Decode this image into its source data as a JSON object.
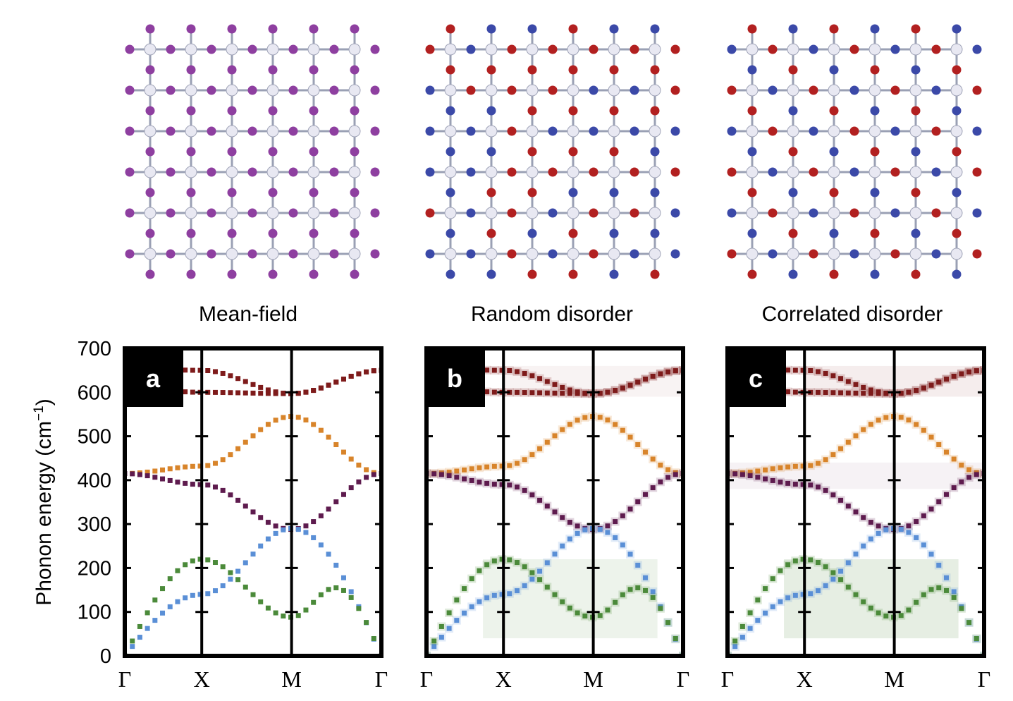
{
  "figure": {
    "panels": [
      {
        "title": "Mean-field",
        "label": "a",
        "lattice": "mean-field",
        "spread": false
      },
      {
        "title": "Random disorder",
        "label": "b",
        "lattice": "random",
        "spread": true
      },
      {
        "title": "Correlated disorder",
        "label": "c",
        "lattice": "correlated",
        "spread": true
      }
    ],
    "y_axis_label_pre": "Phonon energy (cm",
    "y_axis_label_sup": "−1",
    "y_axis_label_post": ")",
    "colors": {
      "top_optical": "#7e1b1b",
      "mid_optical": "#d8842a",
      "low_optical": "#5e1b4e",
      "acoustic_blue": "#5a8fd6",
      "acoustic_green": "#4b8a3a",
      "atom_purple": "#8e3fa0",
      "atom_red": "#b22020",
      "atom_blue": "#3b49a8",
      "atom_center": "#e8e8f2"
    }
  },
  "chart_data": [
    {
      "type": "line",
      "panel": "a",
      "ylabel": "Phonon energy (cm−1)",
      "ylim": [
        0,
        700
      ],
      "yticks": [
        0,
        100,
        200,
        300,
        400,
        500,
        600,
        700
      ],
      "xticks": [
        "Γ",
        "X",
        "M",
        "Γ"
      ],
      "grid": "vertical lines at high-symmetry points",
      "series": [
        {
          "x": [
            0,
            0.3,
            0.65,
            1.0
          ],
          "y": [
            610,
            600,
            597,
            650
          ]
        },
        {
          "x": [
            0,
            0.3,
            0.65,
            1.0
          ],
          "y": [
            655,
            650,
            597,
            650
          ]
        },
        {
          "x": [
            0,
            0.3,
            0.65,
            1.0
          ],
          "y": [
            415,
            432,
            545,
            415
          ]
        },
        {
          "x": [
            0,
            0.3,
            0.65,
            1.0
          ],
          "y": [
            415,
            390,
            288,
            415
          ]
        },
        {
          "x": [
            0,
            0.3,
            0.65,
            1.0
          ],
          "y": [
            0,
            140,
            290,
            0
          ]
        },
        {
          "x": [
            0,
            0.3,
            0.65,
            0.82,
            1.0
          ],
          "y": [
            0,
            220,
            88,
            155,
            0
          ]
        }
      ]
    },
    {
      "type": "line",
      "panel": "b",
      "ylim": [
        0,
        700
      ],
      "xticks": [
        "Γ",
        "X",
        "M",
        "Γ"
      ],
      "series": [
        {
          "x": [
            0,
            0.3,
            0.65,
            1.0
          ],
          "y": [
            610,
            600,
            597,
            650
          ]
        },
        {
          "x": [
            0,
            0.3,
            0.65,
            1.0
          ],
          "y": [
            655,
            650,
            597,
            650
          ]
        },
        {
          "x": [
            0,
            0.3,
            0.65,
            1.0
          ],
          "y": [
            415,
            432,
            545,
            415
          ]
        },
        {
          "x": [
            0,
            0.3,
            0.65,
            1.0
          ],
          "y": [
            415,
            390,
            288,
            415
          ]
        },
        {
          "x": [
            0,
            0.3,
            0.65,
            1.0
          ],
          "y": [
            0,
            140,
            290,
            0
          ]
        },
        {
          "x": [
            0,
            0.3,
            0.65,
            0.82,
            1.0
          ],
          "y": [
            0,
            220,
            88,
            155,
            0
          ]
        }
      ]
    },
    {
      "type": "line",
      "panel": "c",
      "ylim": [
        0,
        700
      ],
      "xticks": [
        "Γ",
        "X",
        "M",
        "Γ"
      ],
      "series": [
        {
          "x": [
            0,
            0.3,
            0.65,
            1.0
          ],
          "y": [
            610,
            600,
            597,
            650
          ]
        },
        {
          "x": [
            0,
            0.3,
            0.65,
            1.0
          ],
          "y": [
            655,
            650,
            597,
            650
          ]
        },
        {
          "x": [
            0,
            0.3,
            0.65,
            1.0
          ],
          "y": [
            415,
            432,
            545,
            415
          ]
        },
        {
          "x": [
            0,
            0.3,
            0.65,
            1.0
          ],
          "y": [
            415,
            390,
            288,
            415
          ]
        },
        {
          "x": [
            0,
            0.3,
            0.65,
            1.0
          ],
          "y": [
            0,
            140,
            290,
            0
          ]
        },
        {
          "x": [
            0,
            0.3,
            0.65,
            0.82,
            1.0
          ],
          "y": [
            0,
            220,
            88,
            155,
            0
          ]
        }
      ]
    }
  ]
}
